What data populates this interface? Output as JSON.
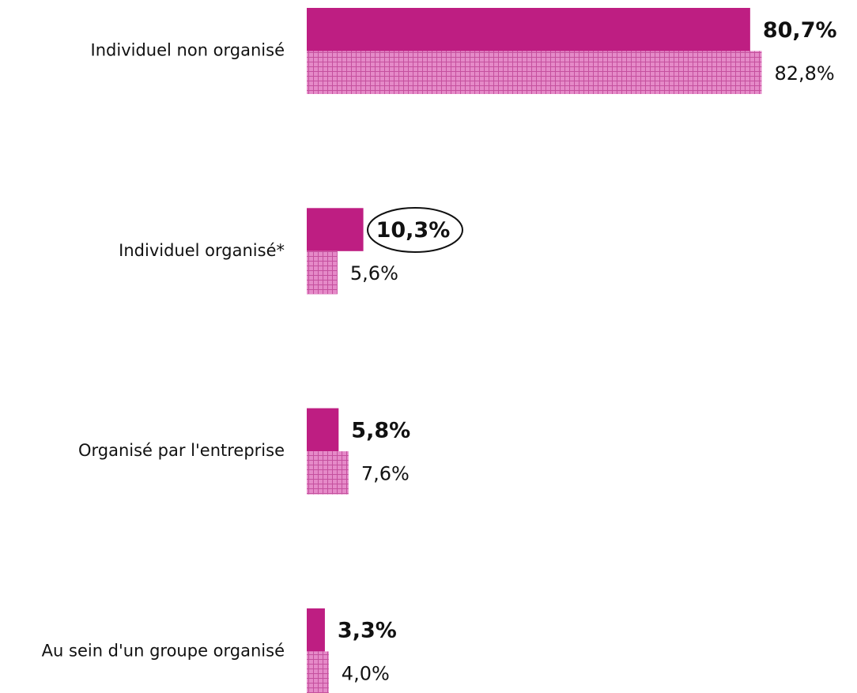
{
  "chart_data": {
    "type": "bar",
    "orientation": "horizontal",
    "categories": [
      "Individuel non organisé",
      "Individuel organisé*",
      "Organisé par l'entreprise",
      "Au sein d'un groupe organisé"
    ],
    "series": [
      {
        "color": "#be1e82",
        "pattern": "solid",
        "values": [
          80.7,
          10.3,
          5.8,
          3.3
        ],
        "value_labels": [
          "80,7%",
          "10,3%",
          "5,8%",
          "3,3%"
        ]
      },
      {
        "color": "#e58ac8",
        "pattern": "grid",
        "values": [
          82.8,
          5.6,
          7.6,
          4.0
        ],
        "value_labels": [
          "82,8%",
          "5,6%",
          "7,6%",
          "4,0%"
        ]
      }
    ]
  }
}
